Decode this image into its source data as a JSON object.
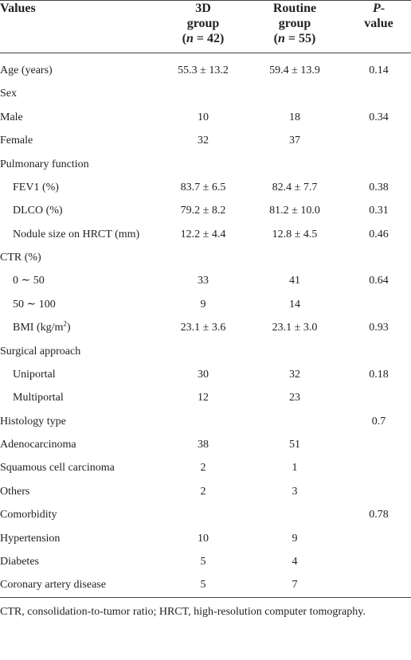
{
  "table": {
    "header": [
      [
        [
          {
            "text": "Values"
          }
        ]
      ],
      [
        [
          {
            "text": "3D"
          }
        ],
        [
          {
            "text": "group"
          }
        ],
        [
          {
            "text": "("
          },
          {
            "text": "n",
            "italic": true
          },
          {
            "text": " = 42)"
          }
        ]
      ],
      [
        [
          {
            "text": "Routine"
          }
        ],
        [
          {
            "text": "group"
          }
        ],
        [
          {
            "text": "("
          },
          {
            "text": "n",
            "italic": true
          },
          {
            "text": " = 55)"
          }
        ]
      ],
      [
        [
          {
            "text": "P",
            "italic": true
          },
          {
            "text": "-"
          }
        ],
        [
          {
            "text": "value"
          }
        ]
      ]
    ],
    "rows": [
      {
        "label": "Age (years)",
        "c1": "55.3 ± 13.2",
        "c2": "59.4 ± 13.9",
        "p": "0.14"
      },
      {
        "label": "Sex",
        "c1": null,
        "c2": null,
        "p": null
      },
      {
        "label": "Male",
        "c1": "10",
        "c2": "18",
        "p": "0.34"
      },
      {
        "label": "Female",
        "c1": "32",
        "c2": "37",
        "p": null
      },
      {
        "label": "Pulmonary function",
        "c1": null,
        "c2": null,
        "p": null
      },
      {
        "label": "FEV1 (%)",
        "indent": true,
        "c1": "83.7 ± 6.5",
        "c2": "82.4 ± 7.7",
        "p": "0.38"
      },
      {
        "label": "DLCO (%)",
        "indent": true,
        "c1": "79.2 ± 8.2",
        "c2": "81.2 ± 10.0",
        "p": "0.31"
      },
      {
        "label": "Nodule size on HRCT (mm)",
        "indent": true,
        "c1": "12.2 ± 4.4",
        "c2": "12.8 ± 4.5",
        "p": "0.46"
      },
      {
        "label": "CTR (%)",
        "c1": null,
        "c2": null,
        "p": null
      },
      {
        "label": "0 ∼ 50",
        "indent": true,
        "c1": "33",
        "c2": "41",
        "p": "0.64"
      },
      {
        "label": "50 ∼ 100",
        "indent": true,
        "c1": "9",
        "c2": "14",
        "p": null
      },
      {
        "label": [
          {
            "text": "BMI (kg/m"
          },
          {
            "text": "2",
            "sup": true
          },
          {
            "text": ")"
          }
        ],
        "indent": true,
        "c1": "23.1 ± 3.6",
        "c2": "23.1 ± 3.0",
        "p": "0.93"
      },
      {
        "label": "Surgical approach",
        "c1": null,
        "c2": null,
        "p": null
      },
      {
        "label": "Uniportal",
        "indent": true,
        "c1": "30",
        "c2": "32",
        "p": "0.18"
      },
      {
        "label": "Multiportal",
        "indent": true,
        "c1": "12",
        "c2": "23",
        "p": null
      },
      {
        "label": "Histology type",
        "c1": null,
        "c2": null,
        "p": "0.7"
      },
      {
        "label": "Adenocarcinoma",
        "c1": "38",
        "c2": "51",
        "p": null
      },
      {
        "label": "Squamous cell carcinoma",
        "c1": "2",
        "c2": "1",
        "p": null
      },
      {
        "label": "Others",
        "c1": "2",
        "c2": "3",
        "p": null
      },
      {
        "label": "Comorbidity",
        "c1": null,
        "c2": null,
        "p": "0.78"
      },
      {
        "label": "Hypertension",
        "c1": "10",
        "c2": "9",
        "p": null
      },
      {
        "label": "Diabetes",
        "c1": "5",
        "c2": "4",
        "p": null
      },
      {
        "label": "Coronary artery disease",
        "c1": "5",
        "c2": "7",
        "p": null
      }
    ],
    "footnote": "CTR, consolidation-to-tumor ratio; HRCT, high-resolution computer tomography."
  }
}
